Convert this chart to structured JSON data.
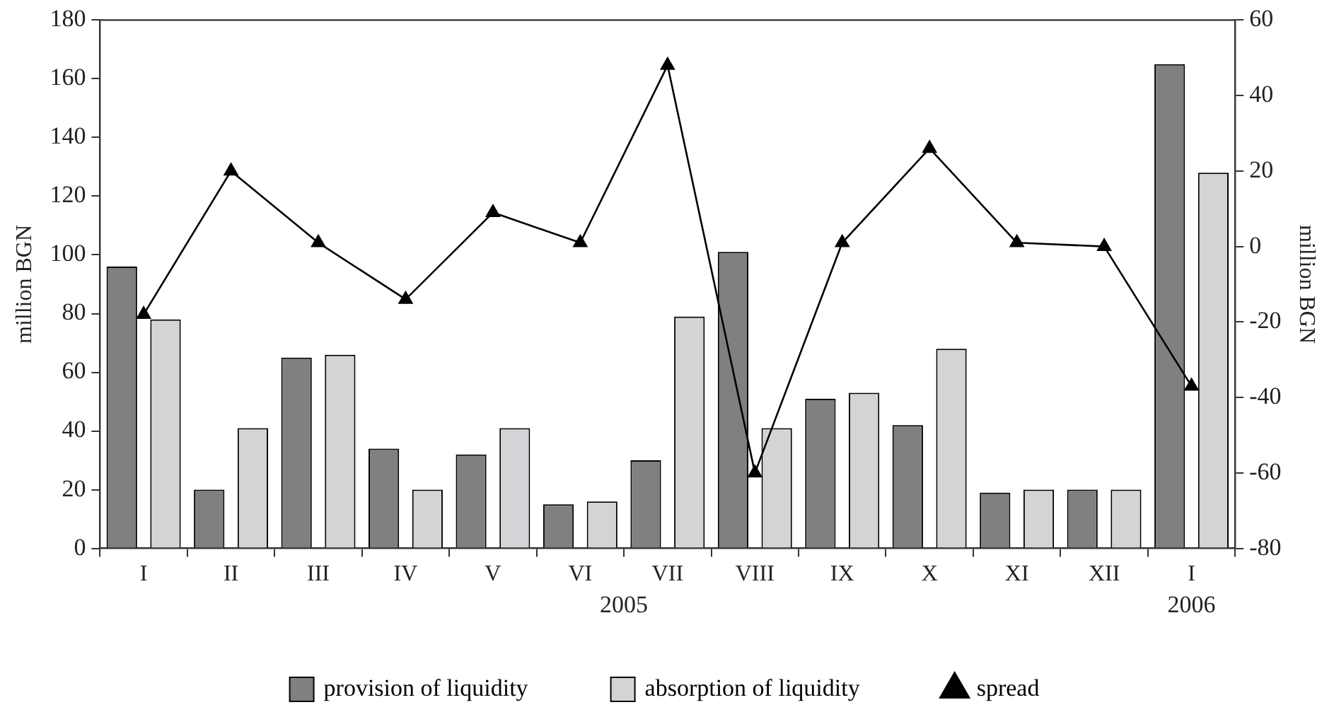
{
  "chart_data": {
    "type": "bar",
    "ylabel": "million BGN",
    "y2label": "million BGN",
    "categories": [
      "I",
      "II",
      "III",
      "IV",
      "V",
      "VI",
      "VII",
      "VIII",
      "IX",
      "X",
      "XI",
      "XII",
      "I"
    ],
    "series": [
      {
        "name": "provision of liquidity",
        "color": "#808083",
        "values": [
          96,
          20,
          65,
          34,
          32,
          15,
          30,
          101,
          51,
          42,
          19,
          20,
          165
        ]
      },
      {
        "name": "absorption of liquidity",
        "color": "#d3d4d6",
        "values": [
          78,
          41,
          66,
          20,
          41,
          16,
          79,
          41,
          53,
          68,
          20,
          20,
          128
        ]
      },
      {
        "name": "spread",
        "type": "line",
        "axis": "y2",
        "color": "#000000",
        "marker": "triangle",
        "values": [
          -18,
          20,
          1,
          -14,
          9,
          1,
          48,
          -60,
          1,
          26,
          1,
          0,
          -37
        ]
      }
    ],
    "ylim": [
      0,
      180
    ],
    "yticks": [
      0,
      20,
      40,
      60,
      80,
      100,
      120,
      140,
      160,
      180
    ],
    "y2lim": [
      -80,
      60
    ],
    "y2ticks": [
      -80,
      -60,
      -40,
      -20,
      0,
      20,
      40,
      60
    ],
    "grid": false,
    "legend": "bottom",
    "annotations": [
      "2005",
      "2006"
    ]
  }
}
